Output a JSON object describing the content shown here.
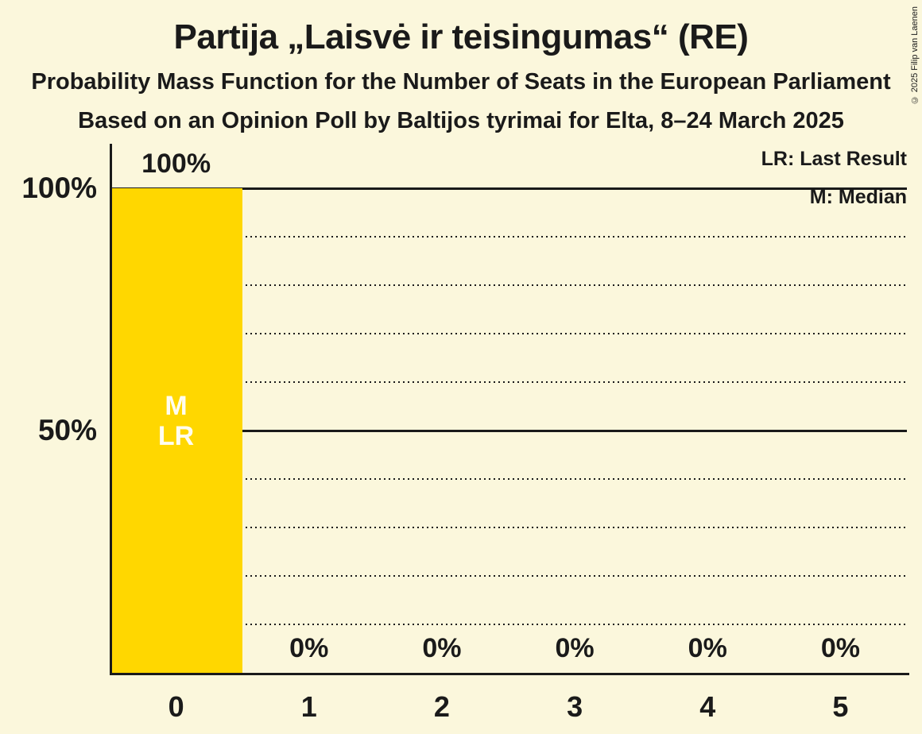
{
  "title": "Partija „Laisvė ir teisingumas“ (RE)",
  "subtitle": "Probability Mass Function for the Number of Seats in the European Parliament",
  "poll_info": "Based on an Opinion Poll by Baltijos tyrimai for Elta, 8–24 March 2025",
  "copyright": "© 2025 Filip van Laenen",
  "legend": {
    "last_result": "LR: Last Result",
    "median": "M: Median"
  },
  "chart_data": {
    "type": "bar",
    "title": "Partija „Laisvė ir teisingumas“ (RE)",
    "xlabel": "",
    "ylabel": "",
    "categories": [
      "0",
      "1",
      "2",
      "3",
      "4",
      "5"
    ],
    "values": [
      100,
      0,
      0,
      0,
      0,
      0
    ],
    "value_labels": [
      "100%",
      "0%",
      "0%",
      "0%",
      "0%",
      "0%"
    ],
    "ylim": [
      0,
      100
    ],
    "y_ticks": [
      {
        "value": 100,
        "label": "100%"
      },
      {
        "value": 50,
        "label": "50%"
      }
    ],
    "gridlines": {
      "dotted_values": [
        10,
        20,
        30,
        40,
        60,
        70,
        80,
        90
      ],
      "solid_values": [
        50,
        100
      ]
    },
    "grid_on": true,
    "legend_position": "top-right",
    "median_category": "0",
    "last_result_category": "0",
    "bar_markers": [
      {
        "category_index": 0,
        "lines": "M\nLR"
      }
    ],
    "colors": {
      "bar": "#FFD700",
      "background": "#FBF7DC",
      "text": "#1A1A1A",
      "bar_marker_text": "#FFFDF0"
    }
  }
}
